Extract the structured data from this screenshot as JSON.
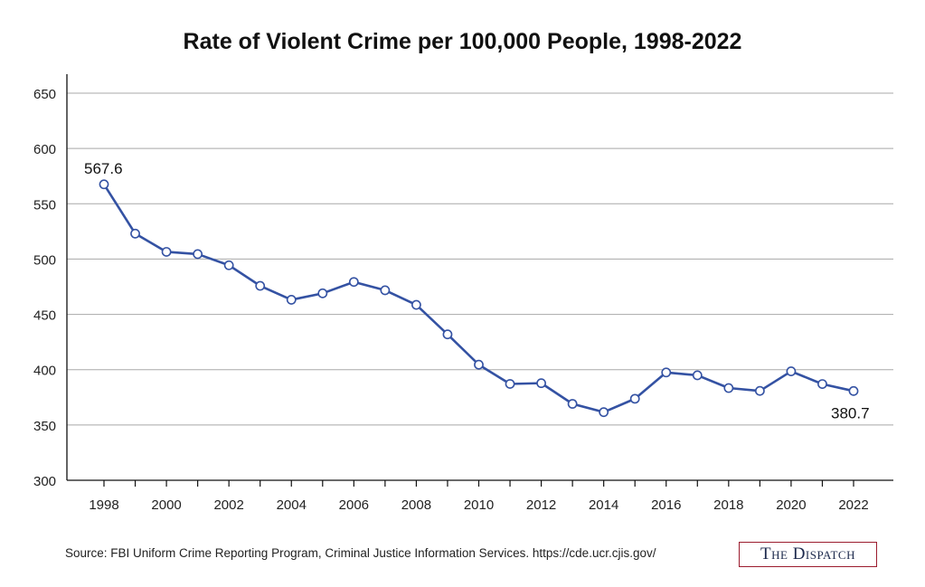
{
  "chart_data": {
    "type": "line",
    "title": "Rate of Violent Crime per 100,000 People, 1998-2022",
    "xlabel": "",
    "ylabel": "",
    "x": [
      1998,
      1999,
      2000,
      2001,
      2002,
      2003,
      2004,
      2005,
      2006,
      2007,
      2008,
      2009,
      2010,
      2011,
      2012,
      2013,
      2014,
      2015,
      2016,
      2017,
      2018,
      2019,
      2020,
      2021,
      2022
    ],
    "series": [
      {
        "values": [
          567.6,
          523,
          506.5,
          504.5,
          494.4,
          475.8,
          463.2,
          469,
          479.3,
          471.8,
          458.6,
          431.9,
          404.5,
          387.1,
          387.8,
          369.1,
          361.6,
          373.7,
          397.5,
          394.9,
          383.4,
          380.8,
          398.5,
          387,
          380.7
        ],
        "color": "#3452a3"
      }
    ],
    "xticks": [
      "1998",
      "2000",
      "2002",
      "2004",
      "2006",
      "2008",
      "2010",
      "2012",
      "2014",
      "2016",
      "2018",
      "2020",
      "2022"
    ],
    "yticks": [
      "300",
      "350",
      "400",
      "450",
      "500",
      "550",
      "600",
      "650"
    ],
    "ylim": [
      300,
      650
    ],
    "xlim": [
      1998,
      2022
    ],
    "grid": "horizontal",
    "annotations": [
      {
        "x": 1998,
        "y": 567.6,
        "text": "567.6"
      },
      {
        "x": 2022,
        "y": 380.7,
        "text": "380.7"
      }
    ],
    "source": "Source: FBI Uniform Crime Reporting Program, Criminal Justice Information Services. https://cde.ucr.cjis.gov/"
  },
  "branding": {
    "logo_text": "The Dispatch",
    "logo_border_color": "#9b1c2e",
    "logo_text_color": "#1d2a4d"
  }
}
